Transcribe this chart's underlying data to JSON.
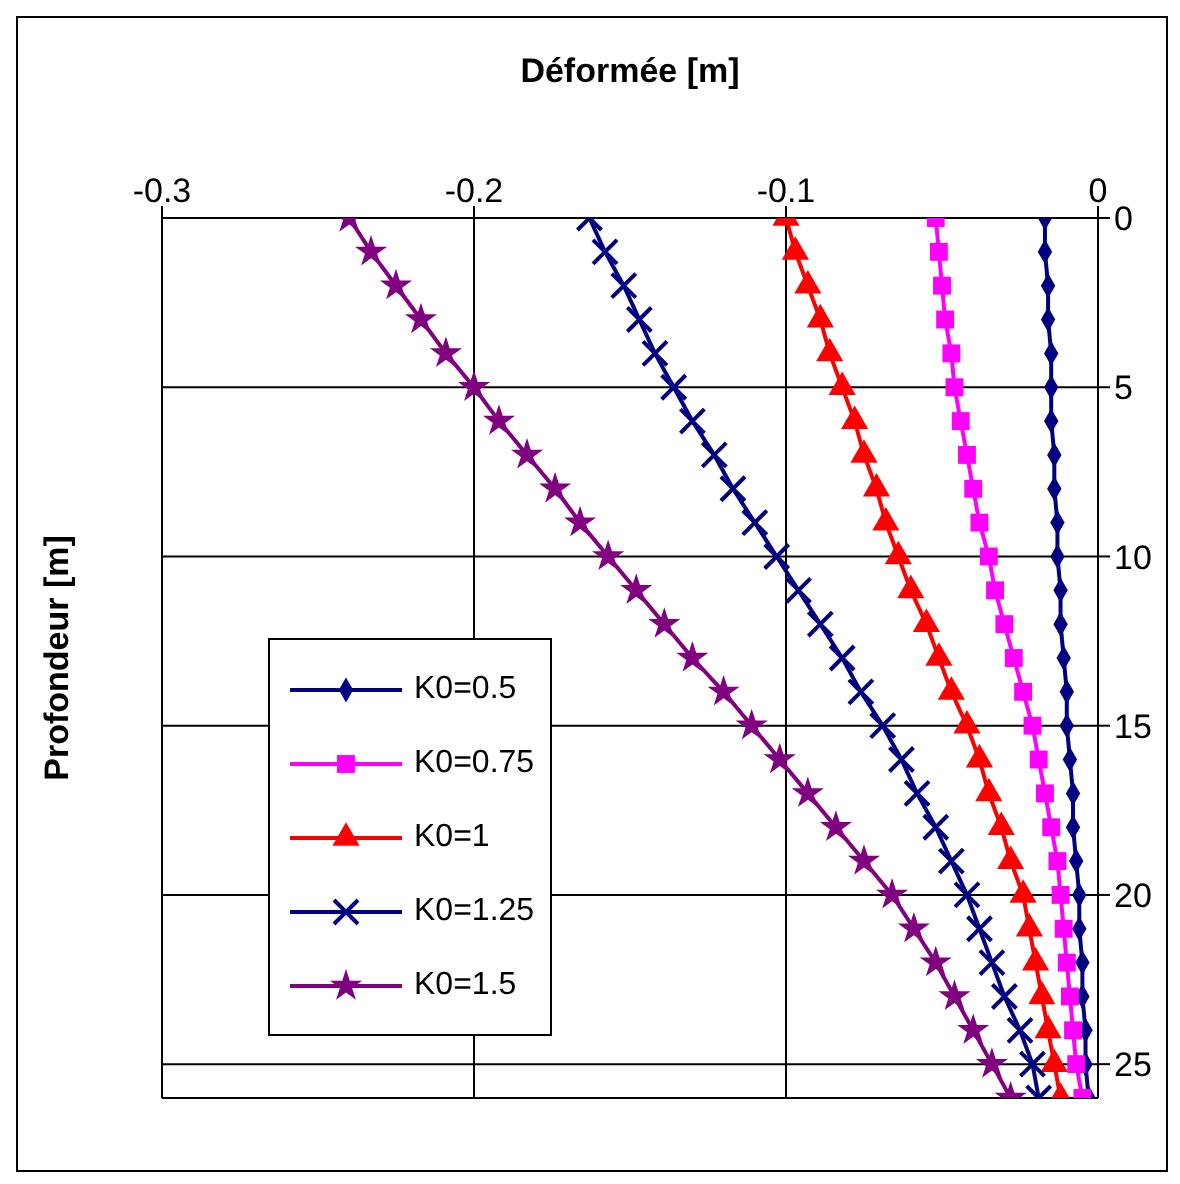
{
  "chart_data": {
    "type": "line",
    "xlabel": "Déformée [m]",
    "ylabel": "Profondeur [m]",
    "xlim": [
      -0.3,
      0
    ],
    "xticks": [
      -0.3,
      -0.2,
      -0.1,
      0
    ],
    "ylim": [
      26,
      0
    ],
    "yticks": [
      0,
      5,
      10,
      15,
      20,
      25
    ],
    "grid": true,
    "legend": "bottom left",
    "line_style": "solid",
    "series": [
      {
        "name": "K0=0.5",
        "color": "#000080",
        "marker": "diamond",
        "x": [
          -0.017,
          -0.017,
          -0.016,
          -0.016,
          -0.015,
          -0.015,
          -0.015,
          -0.014,
          -0.014,
          -0.013,
          -0.013,
          -0.012,
          -0.012,
          -0.011,
          -0.01,
          -0.01,
          -0.009,
          -0.008,
          -0.008,
          -0.007,
          -0.006,
          -0.006,
          -0.005,
          -0.005,
          -0.004,
          -0.004,
          -0.003
        ],
        "values": [
          0,
          1,
          2,
          3,
          4,
          5,
          6,
          7,
          8,
          9,
          10,
          11,
          12,
          13,
          14,
          15,
          16,
          17,
          18,
          19,
          20,
          21,
          22,
          23,
          24,
          25,
          26
        ]
      },
      {
        "name": "K0=0.75",
        "color": "#ff00ff",
        "marker": "square",
        "x": [
          -0.052,
          -0.051,
          -0.05,
          -0.049,
          -0.047,
          -0.046,
          -0.044,
          -0.042,
          -0.04,
          -0.038,
          -0.035,
          -0.033,
          -0.03,
          -0.027,
          -0.024,
          -0.021,
          -0.019,
          -0.017,
          -0.015,
          -0.013,
          -0.012,
          -0.011,
          -0.01,
          -0.009,
          -0.008,
          -0.007,
          -0.005
        ],
        "values": [
          0,
          1,
          2,
          3,
          4,
          5,
          6,
          7,
          8,
          9,
          10,
          11,
          12,
          13,
          14,
          15,
          16,
          17,
          18,
          19,
          20,
          21,
          22,
          23,
          24,
          25,
          26
        ]
      },
      {
        "name": "K0=1",
        "color": "#ff0000",
        "marker": "triangle",
        "x": [
          -0.1,
          -0.097,
          -0.093,
          -0.089,
          -0.086,
          -0.082,
          -0.078,
          -0.075,
          -0.071,
          -0.068,
          -0.064,
          -0.06,
          -0.055,
          -0.051,
          -0.047,
          -0.042,
          -0.038,
          -0.035,
          -0.031,
          -0.028,
          -0.024,
          -0.022,
          -0.02,
          -0.018,
          -0.016,
          -0.014,
          -0.012
        ],
        "values": [
          0,
          1,
          2,
          3,
          4,
          5,
          6,
          7,
          8,
          9,
          10,
          11,
          12,
          13,
          14,
          15,
          16,
          17,
          18,
          19,
          20,
          21,
          22,
          23,
          24,
          25,
          26
        ]
      },
      {
        "name": "K0=1.25",
        "color": "#000080",
        "marker": "cross",
        "x": [
          -0.163,
          -0.158,
          -0.152,
          -0.147,
          -0.142,
          -0.136,
          -0.13,
          -0.123,
          -0.117,
          -0.11,
          -0.103,
          -0.096,
          -0.089,
          -0.082,
          -0.076,
          -0.069,
          -0.063,
          -0.058,
          -0.052,
          -0.047,
          -0.042,
          -0.038,
          -0.034,
          -0.03,
          -0.025,
          -0.021,
          -0.019
        ],
        "values": [
          0,
          1,
          2,
          3,
          4,
          5,
          6,
          7,
          8,
          9,
          10,
          11,
          12,
          13,
          14,
          15,
          16,
          17,
          18,
          19,
          20,
          21,
          22,
          23,
          24,
          25,
          26
        ]
      },
      {
        "name": "K0=1.5",
        "color": "#800080",
        "marker": "star",
        "x": [
          -0.24,
          -0.233,
          -0.225,
          -0.217,
          -0.209,
          -0.2,
          -0.192,
          -0.183,
          -0.174,
          -0.166,
          -0.157,
          -0.148,
          -0.139,
          -0.13,
          -0.12,
          -0.111,
          -0.102,
          -0.093,
          -0.084,
          -0.075,
          -0.066,
          -0.059,
          -0.052,
          -0.046,
          -0.04,
          -0.034,
          -0.028
        ],
        "values": [
          0,
          1,
          2,
          3,
          4,
          5,
          6,
          7,
          8,
          9,
          10,
          11,
          12,
          13,
          14,
          15,
          16,
          17,
          18,
          19,
          20,
          21,
          22,
          23,
          24,
          25,
          26
        ]
      }
    ]
  }
}
